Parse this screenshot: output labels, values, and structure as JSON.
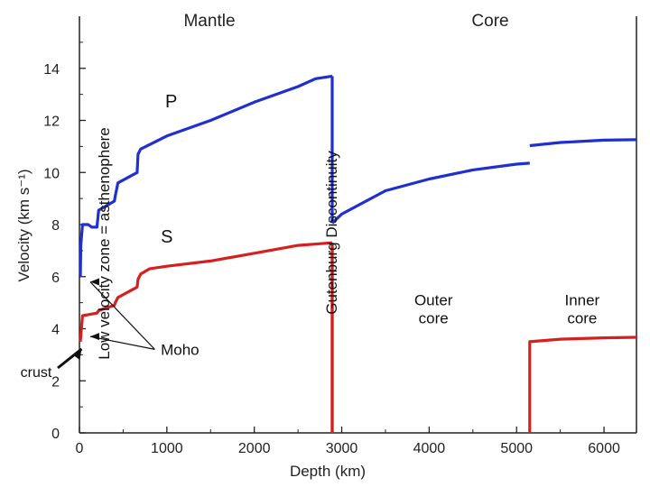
{
  "chart_data": {
    "type": "line",
    "title": "",
    "region_labels": {
      "left": "Mantle",
      "right": "Core"
    },
    "xlabel": "Depth (km)",
    "ylabel": "Velocity (km s⁻¹)",
    "xlim": [
      0,
      6371
    ],
    "ylim": [
      0,
      16
    ],
    "xticks": [
      0,
      1000,
      2000,
      3000,
      4000,
      5000,
      6000
    ],
    "yticks": [
      0,
      2,
      4,
      6,
      8,
      10,
      12,
      14
    ],
    "grid": false,
    "series": [
      {
        "name": "P",
        "color": "#1f2fd0",
        "segments": [
          [
            [
              10,
              6.0
            ],
            [
              15,
              7.2
            ],
            [
              35,
              8.0
            ],
            [
              100,
              8.0
            ],
            [
              140,
              7.9
            ],
            [
              200,
              7.9
            ],
            [
              220,
              8.55
            ],
            [
              400,
              8.9
            ],
            [
              410,
              9.1
            ],
            [
              440,
              9.6
            ],
            [
              660,
              10.0
            ],
            [
              670,
              10.7
            ],
            [
              700,
              10.9
            ],
            [
              1000,
              11.4
            ],
            [
              1500,
              12.0
            ],
            [
              2000,
              12.7
            ],
            [
              2500,
              13.3
            ],
            [
              2700,
              13.6
            ],
            [
              2891,
              13.7
            ]
          ],
          [
            [
              2891,
              8.06
            ],
            [
              3000,
              8.4
            ],
            [
              3500,
              9.3
            ],
            [
              4000,
              9.75
            ],
            [
              4500,
              10.1
            ],
            [
              5000,
              10.32
            ],
            [
              5150,
              10.36
            ]
          ],
          [
            [
              5150,
              11.03
            ],
            [
              5500,
              11.15
            ],
            [
              6000,
              11.24
            ],
            [
              6371,
              11.26
            ]
          ]
        ]
      },
      {
        "name": "S",
        "color": "#d61f1f",
        "segments": [
          [
            [
              10,
              3.5
            ],
            [
              20,
              3.9
            ],
            [
              35,
              4.5
            ],
            [
              200,
              4.6
            ],
            [
              220,
              4.7
            ],
            [
              400,
              4.9
            ],
            [
              410,
              5.0
            ],
            [
              440,
              5.2
            ],
            [
              660,
              5.6
            ],
            [
              670,
              5.9
            ],
            [
              700,
              6.1
            ],
            [
              800,
              6.3
            ],
            [
              1000,
              6.4
            ],
            [
              1500,
              6.6
            ],
            [
              2000,
              6.9
            ],
            [
              2500,
              7.2
            ],
            [
              2891,
              7.3
            ]
          ],
          [
            [
              2891,
              0
            ],
            [
              2891,
              7.3
            ]
          ],
          [
            [
              5150,
              0
            ],
            [
              5150,
              3.5
            ],
            [
              5500,
              3.6
            ],
            [
              6000,
              3.65
            ],
            [
              6371,
              3.67
            ]
          ]
        ]
      }
    ],
    "zone_labels": [
      {
        "text": "Outer core",
        "lines": [
          "Outer",
          "core"
        ],
        "x": 4050,
        "y": 4.9
      },
      {
        "text": "Inner core",
        "lines": [
          "Inner",
          "core"
        ],
        "x": 5750,
        "y": 4.9
      }
    ],
    "annotations": [
      {
        "id": "moho",
        "text": "Moho",
        "x": 1150,
        "y": 3.0,
        "targets": [
          [
            20,
            5.8
          ],
          [
            20,
            3.7
          ]
        ]
      },
      {
        "id": "crust",
        "text": "crust",
        "x": -800,
        "y": 2.3,
        "targets": [
          [
            25,
            3.5
          ]
        ]
      },
      {
        "id": "lvz",
        "text": "Low velocity zone = asthenophere",
        "x": 150,
        "y": 7.0,
        "rotated": true
      },
      {
        "id": "gutenberg",
        "text": "Gutenburg Discontinuity",
        "x": 2700,
        "y": 10.5,
        "rotated": true
      }
    ]
  }
}
